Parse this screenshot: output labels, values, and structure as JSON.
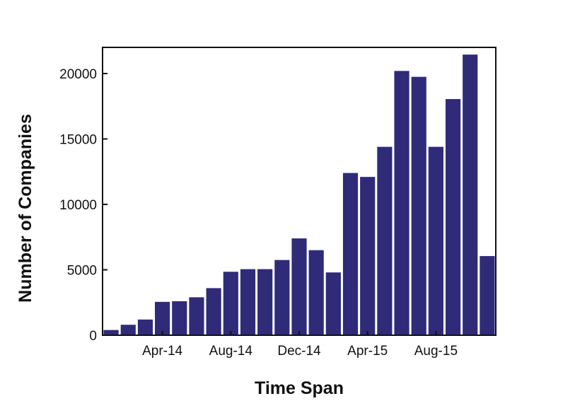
{
  "chart_data": {
    "type": "bar",
    "title": "",
    "xlabel": "Time Span",
    "ylabel": "Number of Companies",
    "ylim": [
      0,
      22000
    ],
    "yticks": [
      0,
      5000,
      10000,
      15000,
      20000
    ],
    "grid": false,
    "legend": "none",
    "bar_color": "#2f2b78",
    "categories": [
      "Jan-14",
      "Feb-14",
      "Mar-14",
      "Apr-14",
      "May-14",
      "Jun-14",
      "Jul-14",
      "Aug-14",
      "Sep-14",
      "Oct-14",
      "Nov-14",
      "Dec-14",
      "Jan-15",
      "Feb-15",
      "Mar-15",
      "Apr-15",
      "May-15",
      "Jun-15",
      "Jul-15",
      "Aug-15",
      "Sep-15",
      "Oct-15",
      "Nov-15"
    ],
    "xtick_labels": [
      {
        "label": "Apr-14",
        "category": "Apr-14"
      },
      {
        "label": "Aug-14",
        "category": "Aug-14"
      },
      {
        "label": "Dec-14",
        "category": "Dec-14"
      },
      {
        "label": "Apr-15",
        "category": "Apr-15"
      },
      {
        "label": "Aug-15",
        "category": "Aug-15"
      }
    ],
    "values": [
      400,
      800,
      1200,
      2550,
      2600,
      2900,
      3600,
      4850,
      5050,
      5050,
      5750,
      7400,
      6500,
      4800,
      12400,
      12100,
      14400,
      20200,
      19750,
      14400,
      18050,
      21450,
      6050
    ]
  }
}
